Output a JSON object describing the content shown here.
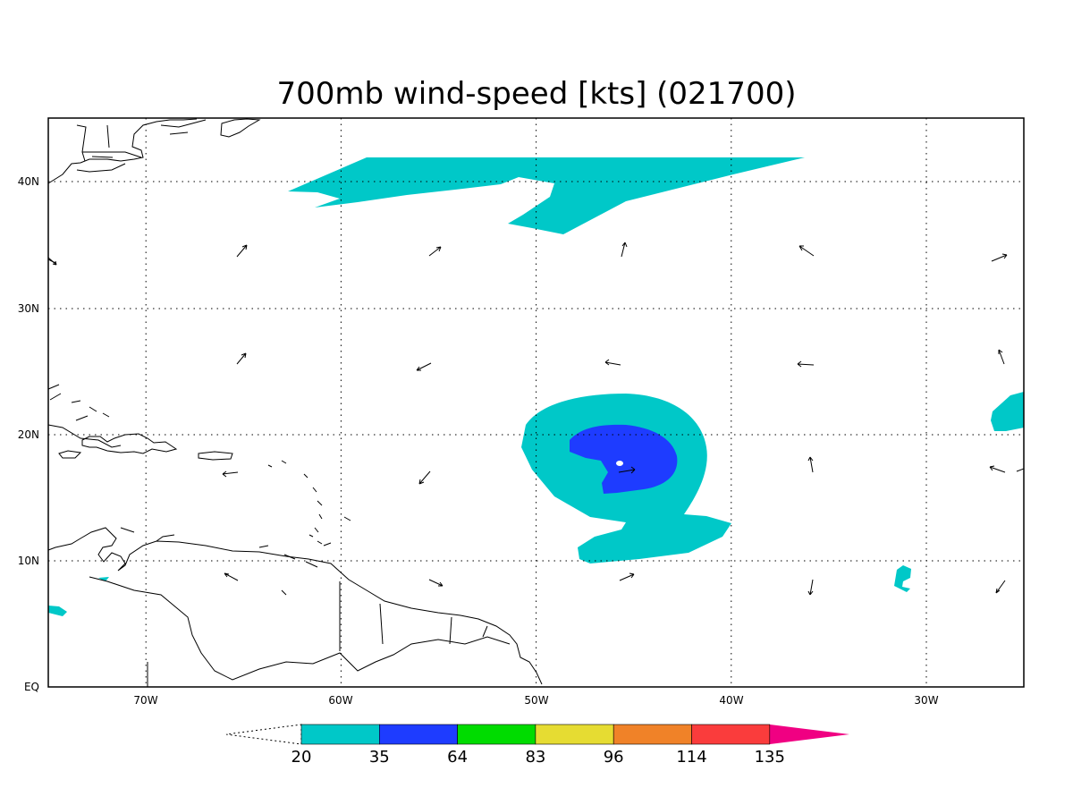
{
  "title": "700mb wind-speed [kts] (021700)",
  "axes": {
    "lon_labels": [
      "70W",
      "60W",
      "50W",
      "40W",
      "30W"
    ],
    "lat_labels": [
      "EQ",
      "10N",
      "20N",
      "30N",
      "40N"
    ]
  },
  "colorbar": {
    "levels": [
      "20",
      "35",
      "64",
      "83",
      "96",
      "114",
      "135"
    ],
    "colors": [
      "#00c8c8",
      "#1e3cff",
      "#00dc00",
      "#e6dc32",
      "#f08228",
      "#fa3c3c",
      "#f00082"
    ],
    "extend": "both"
  },
  "colors": {
    "background": "#ffffff",
    "frame": "#000000",
    "coast": "#000000",
    "grid": "#000000"
  }
}
